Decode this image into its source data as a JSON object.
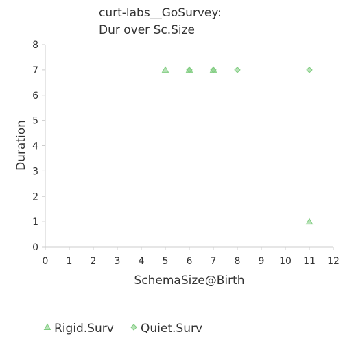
{
  "chart_data": {
    "type": "scatter",
    "title": [
      "curt-labs__GoSurvey:",
      "Dur over Sc.Size"
    ],
    "xlabel": "SchemaSize@Birth",
    "ylabel": "Duration",
    "xlim": [
      0,
      12
    ],
    "ylim": [
      0,
      8
    ],
    "xticks": [
      "0",
      "1",
      "2",
      "3",
      "4",
      "5",
      "6",
      "7",
      "8",
      "9",
      "10",
      "11",
      "12"
    ],
    "yticks": [
      "0",
      "1",
      "2",
      "3",
      "4",
      "5",
      "6",
      "7",
      "8"
    ],
    "grid": false,
    "legend_position": "bottom-left",
    "series": [
      {
        "name": "Rigid.Surv",
        "marker": "triangle",
        "color": "#7fcc7f",
        "points": [
          {
            "x": 5,
            "y": 7
          },
          {
            "x": 6,
            "y": 7
          },
          {
            "x": 7,
            "y": 7
          },
          {
            "x": 11,
            "y": 1
          }
        ]
      },
      {
        "name": "Quiet.Surv",
        "marker": "diamond",
        "color": "#7fcc7f",
        "points": [
          {
            "x": 6,
            "y": 7
          },
          {
            "x": 7,
            "y": 7
          },
          {
            "x": 8,
            "y": 7
          },
          {
            "x": 11,
            "y": 7
          }
        ]
      }
    ]
  }
}
